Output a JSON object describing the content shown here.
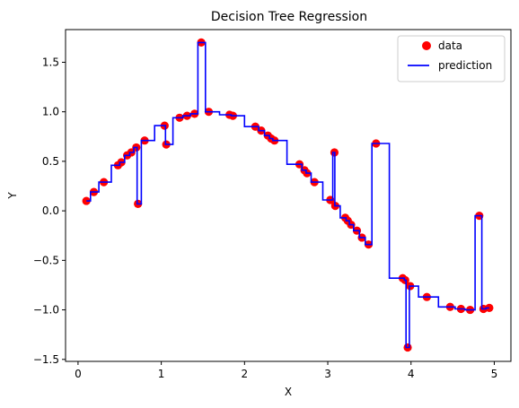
{
  "chart_data": {
    "type": "scatter",
    "title": "Decision Tree Regression",
    "xlabel": "X",
    "ylabel": "Y",
    "xlim": [
      -0.15,
      5.2
    ],
    "ylim": [
      -1.52,
      1.83
    ],
    "xticks": [
      0,
      1,
      2,
      3,
      4,
      5
    ],
    "yticks": [
      -1.5,
      -1.0,
      -0.5,
      0.0,
      0.5,
      1.0,
      1.5
    ],
    "grid": false,
    "legend_position": "top-right",
    "series": [
      {
        "name": "data",
        "kind": "scatter",
        "color": "#ff0000",
        "points": [
          [
            0.1,
            0.1
          ],
          [
            0.19,
            0.19
          ],
          [
            0.31,
            0.29
          ],
          [
            0.48,
            0.46
          ],
          [
            0.52,
            0.49
          ],
          [
            0.59,
            0.56
          ],
          [
            0.64,
            0.59
          ],
          [
            0.7,
            0.64
          ],
          [
            0.72,
            0.07
          ],
          [
            0.8,
            0.71
          ],
          [
            1.04,
            0.86
          ],
          [
            1.06,
            0.67
          ],
          [
            1.22,
            0.94
          ],
          [
            1.31,
            0.96
          ],
          [
            1.4,
            0.98
          ],
          [
            1.48,
            1.7
          ],
          [
            1.57,
            1.0
          ],
          [
            1.82,
            0.97
          ],
          [
            1.86,
            0.96
          ],
          [
            2.13,
            0.85
          ],
          [
            2.2,
            0.81
          ],
          [
            2.28,
            0.76
          ],
          [
            2.32,
            0.73
          ],
          [
            2.36,
            0.71
          ],
          [
            2.66,
            0.47
          ],
          [
            2.72,
            0.41
          ],
          [
            2.75,
            0.38
          ],
          [
            2.84,
            0.29
          ],
          [
            3.03,
            0.11
          ],
          [
            3.08,
            0.59
          ],
          [
            3.09,
            0.05
          ],
          [
            3.21,
            -0.07
          ],
          [
            3.24,
            -0.1
          ],
          [
            3.28,
            -0.14
          ],
          [
            3.35,
            -0.2
          ],
          [
            3.41,
            -0.27
          ],
          [
            3.49,
            -0.34
          ],
          [
            3.58,
            0.68
          ],
          [
            3.9,
            -0.68
          ],
          [
            3.93,
            -0.7
          ],
          [
            3.96,
            -1.38
          ],
          [
            3.99,
            -0.76
          ],
          [
            4.19,
            -0.87
          ],
          [
            4.47,
            -0.97
          ],
          [
            4.6,
            -0.99
          ],
          [
            4.71,
            -1.0
          ],
          [
            4.82,
            -0.05
          ],
          [
            4.87,
            -0.99
          ],
          [
            4.94,
            -0.98
          ]
        ]
      },
      {
        "name": "prediction",
        "kind": "step",
        "color": "#0000ff",
        "points": [
          [
            0.1,
            0.1
          ],
          [
            0.15,
            0.1
          ],
          [
            0.15,
            0.19
          ],
          [
            0.25,
            0.19
          ],
          [
            0.25,
            0.29
          ],
          [
            0.4,
            0.29
          ],
          [
            0.4,
            0.46
          ],
          [
            0.5,
            0.46
          ],
          [
            0.5,
            0.49
          ],
          [
            0.56,
            0.49
          ],
          [
            0.56,
            0.56
          ],
          [
            0.62,
            0.56
          ],
          [
            0.62,
            0.59
          ],
          [
            0.67,
            0.59
          ],
          [
            0.67,
            0.64
          ],
          [
            0.71,
            0.64
          ],
          [
            0.71,
            0.07
          ],
          [
            0.76,
            0.07
          ],
          [
            0.76,
            0.71
          ],
          [
            0.92,
            0.71
          ],
          [
            0.92,
            0.86
          ],
          [
            1.05,
            0.86
          ],
          [
            1.05,
            0.67
          ],
          [
            1.14,
            0.67
          ],
          [
            1.14,
            0.94
          ],
          [
            1.26,
            0.94
          ],
          [
            1.26,
            0.96
          ],
          [
            1.35,
            0.96
          ],
          [
            1.35,
            0.98
          ],
          [
            1.44,
            0.98
          ],
          [
            1.44,
            1.7
          ],
          [
            1.53,
            1.7
          ],
          [
            1.53,
            1.0
          ],
          [
            1.7,
            1.0
          ],
          [
            1.7,
            0.97
          ],
          [
            1.84,
            0.97
          ],
          [
            1.84,
            0.96
          ],
          [
            2.0,
            0.96
          ],
          [
            2.0,
            0.85
          ],
          [
            2.17,
            0.85
          ],
          [
            2.17,
            0.81
          ],
          [
            2.24,
            0.81
          ],
          [
            2.24,
            0.76
          ],
          [
            2.3,
            0.76
          ],
          [
            2.3,
            0.73
          ],
          [
            2.34,
            0.73
          ],
          [
            2.34,
            0.71
          ],
          [
            2.51,
            0.71
          ],
          [
            2.51,
            0.47
          ],
          [
            2.69,
            0.47
          ],
          [
            2.69,
            0.41
          ],
          [
            2.74,
            0.41
          ],
          [
            2.74,
            0.38
          ],
          [
            2.8,
            0.38
          ],
          [
            2.8,
            0.29
          ],
          [
            2.94,
            0.29
          ],
          [
            2.94,
            0.11
          ],
          [
            3.06,
            0.11
          ],
          [
            3.06,
            0.59
          ],
          [
            3.085,
            0.59
          ],
          [
            3.085,
            0.05
          ],
          [
            3.15,
            0.05
          ],
          [
            3.15,
            -0.07
          ],
          [
            3.22,
            -0.07
          ],
          [
            3.22,
            -0.1
          ],
          [
            3.26,
            -0.1
          ],
          [
            3.26,
            -0.14
          ],
          [
            3.31,
            -0.14
          ],
          [
            3.31,
            -0.2
          ],
          [
            3.38,
            -0.2
          ],
          [
            3.38,
            -0.27
          ],
          [
            3.45,
            -0.27
          ],
          [
            3.45,
            -0.34
          ],
          [
            3.53,
            -0.34
          ],
          [
            3.53,
            0.68
          ],
          [
            3.74,
            0.68
          ],
          [
            3.74,
            -0.68
          ],
          [
            3.92,
            -0.68
          ],
          [
            3.92,
            -0.7
          ],
          [
            3.94,
            -0.7
          ],
          [
            3.94,
            -1.38
          ],
          [
            3.98,
            -1.38
          ],
          [
            3.98,
            -0.76
          ],
          [
            4.09,
            -0.76
          ],
          [
            4.09,
            -0.87
          ],
          [
            4.33,
            -0.87
          ],
          [
            4.33,
            -0.97
          ],
          [
            4.53,
            -0.97
          ],
          [
            4.53,
            -0.99
          ],
          [
            4.65,
            -0.99
          ],
          [
            4.65,
            -1.0
          ],
          [
            4.77,
            -1.0
          ],
          [
            4.77,
            -0.05
          ],
          [
            4.85,
            -0.05
          ],
          [
            4.85,
            -0.99
          ],
          [
            4.9,
            -0.99
          ],
          [
            4.9,
            -0.98
          ],
          [
            4.94,
            -0.98
          ]
        ]
      }
    ]
  }
}
